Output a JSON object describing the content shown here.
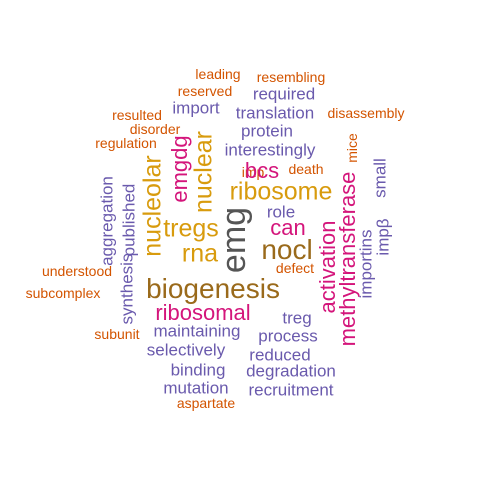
{
  "words": {
    "leading": "leading",
    "resembling": "resembling",
    "reserved": "reserved",
    "required": "required",
    "import": "import",
    "resulted": "resulted",
    "translation": "translation",
    "disassembly": "disassembly",
    "disorder": "disorder",
    "protein": "protein",
    "regulation": "regulation",
    "interestingly": "interestingly",
    "mice": "mice",
    "imp": "imp",
    "death": "death",
    "bcs": "bcs",
    "small": "small",
    "emgdg": "emgdg",
    "nuclear": "nuclear",
    "ribosome": "ribosome",
    "nucleolar": "nucleolar",
    "methyltransferase": "methyltransferase",
    "aggregation": "aggregation",
    "published": "published",
    "role": "role",
    "impbeta": "impβ",
    "tregs": "tregs",
    "emg": "emg",
    "can": "can",
    "rna": "rna",
    "nocl": "nocl",
    "activation": "activation",
    "importins": "importins",
    "synthesis": "synthesis",
    "understood": "understood",
    "defect": "defect",
    "biogenesis": "biogenesis",
    "subcomplex": "subcomplex",
    "ribosomal": "ribosomal",
    "treg": "treg",
    "subunit": "subunit",
    "maintaining": "maintaining",
    "process": "process",
    "selectively": "selectively",
    "reduced": "reduced",
    "binding": "binding",
    "degradation": "degradation",
    "mutation": "mutation",
    "recruitment": "recruitment",
    "aspartate": "aspartate"
  }
}
